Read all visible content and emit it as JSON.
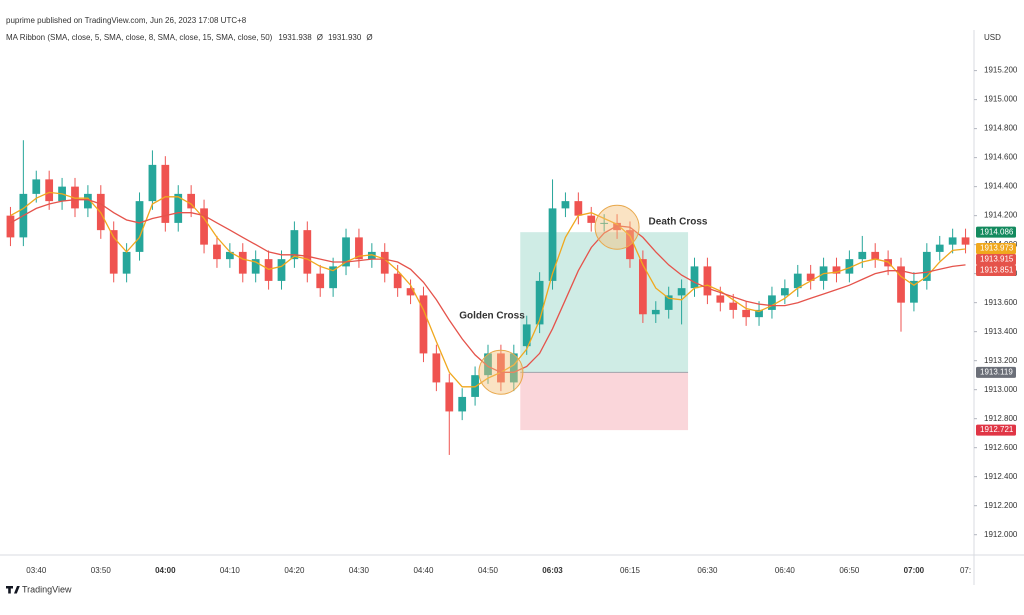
{
  "header": {
    "text": "puprime published on TradingView.com, Jun 26, 2023 17:08 UTC+8"
  },
  "footer": {
    "text": "TradingView"
  },
  "chart_data": {
    "type": "candlestick",
    "unit": "USD",
    "indicator": {
      "label": "MA Ribbon (SMA, close, 5, SMA, close, 8, SMA, close, 15, SMA, close, 50)",
      "values": [
        {
          "text": "1931.938",
          "color": "#f0a81e"
        },
        {
          "text": "Ø",
          "color": "#555555"
        },
        {
          "text": "1931.930",
          "color": "#e5534b"
        },
        {
          "text": "Ø",
          "color": "#555555"
        }
      ]
    },
    "categories": [
      null,
      null,
      "03:40",
      null,
      null,
      null,
      null,
      "03:50",
      null,
      null,
      null,
      null,
      "04:00",
      null,
      null,
      null,
      null,
      "04:10",
      null,
      null,
      null,
      null,
      "04:20",
      null,
      null,
      null,
      null,
      "04:30",
      null,
      null,
      null,
      null,
      "04:40",
      null,
      null,
      null,
      null,
      "04:50",
      null,
      null,
      null,
      null,
      "06:03",
      null,
      null,
      null,
      null,
      null,
      "06:15",
      null,
      null,
      null,
      null,
      null,
      "06:30",
      null,
      null,
      null,
      null,
      null,
      "06:40",
      null,
      null,
      null,
      null,
      "06:50",
      null,
      null,
      null,
      null,
      "07:00",
      null,
      null,
      null,
      "07:"
    ],
    "up_color": "#26a69a",
    "down_color": "#ef5350",
    "candles": [
      [
        1914.2,
        1914.26,
        1913.99,
        1914.05
      ],
      [
        1914.05,
        1914.72,
        1913.99,
        1914.35
      ],
      [
        1914.35,
        1914.51,
        1914.29,
        1914.45
      ],
      [
        1914.45,
        1914.51,
        1914.24,
        1914.3
      ],
      [
        1914.3,
        1914.46,
        1914.24,
        1914.4
      ],
      [
        1914.4,
        1914.46,
        1914.19,
        1914.25
      ],
      [
        1914.25,
        1914.41,
        1914.19,
        1914.35
      ],
      [
        1914.35,
        1914.41,
        1914.04,
        1914.1
      ],
      [
        1914.1,
        1914.16,
        1913.74,
        1913.8
      ],
      [
        1913.8,
        1914.01,
        1913.74,
        1913.95
      ],
      [
        1913.95,
        1914.36,
        1913.89,
        1914.3
      ],
      [
        1914.3,
        1914.65,
        1914.24,
        1914.55
      ],
      [
        1914.55,
        1914.61,
        1914.09,
        1914.15
      ],
      [
        1914.15,
        1914.41,
        1914.09,
        1914.35
      ],
      [
        1914.35,
        1914.41,
        1914.19,
        1914.25
      ],
      [
        1914.25,
        1914.31,
        1913.94,
        1914.0
      ],
      [
        1914.0,
        1914.06,
        1913.84,
        1913.9
      ],
      [
        1913.9,
        1914.01,
        1913.84,
        1913.95
      ],
      [
        1913.95,
        1914.01,
        1913.74,
        1913.8
      ],
      [
        1913.8,
        1913.96,
        1913.74,
        1913.9
      ],
      [
        1913.9,
        1913.96,
        1913.69,
        1913.75
      ],
      [
        1913.75,
        1913.96,
        1913.69,
        1913.9
      ],
      [
        1913.9,
        1914.16,
        1913.84,
        1914.1
      ],
      [
        1914.1,
        1914.16,
        1913.74,
        1913.8
      ],
      [
        1913.8,
        1913.86,
        1913.64,
        1913.7
      ],
      [
        1913.7,
        1913.91,
        1913.64,
        1913.85
      ],
      [
        1913.85,
        1914.11,
        1913.79,
        1914.05
      ],
      [
        1914.05,
        1914.11,
        1913.84,
        1913.9
      ],
      [
        1913.9,
        1914.01,
        1913.84,
        1913.95
      ],
      [
        1913.95,
        1914.01,
        1913.74,
        1913.8
      ],
      [
        1913.8,
        1913.86,
        1913.64,
        1913.7
      ],
      [
        1913.7,
        1913.76,
        1913.59,
        1913.65
      ],
      [
        1913.65,
        1913.71,
        1913.19,
        1913.25
      ],
      [
        1913.25,
        1913.31,
        1912.99,
        1913.05
      ],
      [
        1913.05,
        1913.11,
        1912.55,
        1912.85
      ],
      [
        1912.85,
        1913.01,
        1912.79,
        1912.95
      ],
      [
        1912.95,
        1913.16,
        1912.89,
        1913.1
      ],
      [
        1913.1,
        1913.31,
        1913.04,
        1913.25
      ],
      [
        1913.25,
        1913.31,
        1912.99,
        1913.05
      ],
      [
        1913.05,
        1913.31,
        1912.99,
        1913.25
      ],
      [
        1913.3,
        1913.51,
        1913.24,
        1913.45
      ],
      [
        1913.45,
        1913.81,
        1913.39,
        1913.75
      ],
      [
        1913.75,
        1914.45,
        1913.69,
        1914.25
      ],
      [
        1914.25,
        1914.36,
        1914.19,
        1914.3
      ],
      [
        1914.3,
        1914.36,
        1914.14,
        1914.2
      ],
      [
        1914.2,
        1914.26,
        1914.09,
        1914.15
      ],
      [
        1914.15,
        1914.21,
        1914.09,
        1914.15
      ],
      [
        1914.15,
        1914.21,
        1914.04,
        1914.1
      ],
      [
        1914.1,
        1914.16,
        1913.84,
        1913.9
      ],
      [
        1913.9,
        1913.96,
        1913.46,
        1913.52
      ],
      [
        1913.52,
        1913.61,
        1913.46,
        1913.55
      ],
      [
        1913.55,
        1913.71,
        1913.49,
        1913.65
      ],
      [
        1913.65,
        1913.76,
        1913.45,
        1913.7
      ],
      [
        1913.7,
        1913.91,
        1913.64,
        1913.85
      ],
      [
        1913.85,
        1913.91,
        1913.59,
        1913.65
      ],
      [
        1913.65,
        1913.71,
        1913.54,
        1913.6
      ],
      [
        1913.6,
        1913.66,
        1913.49,
        1913.55
      ],
      [
        1913.55,
        1913.61,
        1913.44,
        1913.5
      ],
      [
        1913.5,
        1913.61,
        1913.44,
        1913.55
      ],
      [
        1913.55,
        1913.71,
        1913.49,
        1913.65
      ],
      [
        1913.65,
        1913.76,
        1913.59,
        1913.7
      ],
      [
        1913.7,
        1913.86,
        1913.64,
        1913.8
      ],
      [
        1913.8,
        1913.86,
        1913.69,
        1913.75
      ],
      [
        1913.75,
        1913.91,
        1913.69,
        1913.85
      ],
      [
        1913.85,
        1913.91,
        1913.74,
        1913.8
      ],
      [
        1913.8,
        1913.96,
        1913.74,
        1913.9
      ],
      [
        1913.9,
        1914.06,
        1913.84,
        1913.95
      ],
      [
        1913.95,
        1914.01,
        1913.84,
        1913.9
      ],
      [
        1913.9,
        1913.96,
        1913.79,
        1913.85
      ],
      [
        1913.85,
        1913.91,
        1913.4,
        1913.6
      ],
      [
        1913.6,
        1913.81,
        1913.54,
        1913.75
      ],
      [
        1913.75,
        1914.01,
        1913.69,
        1913.95
      ],
      [
        1913.95,
        1914.06,
        1913.89,
        1914.0
      ],
      [
        1914.0,
        1914.11,
        1913.94,
        1914.05
      ],
      [
        1914.05,
        1914.11,
        1913.94,
        1914.0
      ]
    ],
    "ma_lines": [
      {
        "color": "#f0a81e",
        "values": [
          1914.2,
          1914.25,
          1914.32,
          1914.36,
          1914.35,
          1914.32,
          1914.32,
          1914.22,
          1914.05,
          1913.95,
          1914.05,
          1914.28,
          1914.33,
          1914.33,
          1914.28,
          1914.18,
          1914.05,
          1913.95,
          1913.9,
          1913.88,
          1913.83,
          1913.85,
          1913.92,
          1913.9,
          1913.85,
          1913.82,
          1913.88,
          1913.92,
          1913.93,
          1913.9,
          1913.82,
          1913.72,
          1913.55,
          1913.33,
          1913.12,
          1913.02,
          1913.02,
          1913.08,
          1913.12,
          1913.17,
          1913.28,
          1913.48,
          1913.8,
          1914.05,
          1914.2,
          1914.22,
          1914.18,
          1914.14,
          1914.06,
          1913.86,
          1913.7,
          1913.63,
          1913.62,
          1913.7,
          1913.72,
          1913.68,
          1913.62,
          1913.56,
          1913.54,
          1913.58,
          1913.63,
          1913.7,
          1913.75,
          1913.8,
          1913.81,
          1913.84,
          1913.88,
          1913.9,
          1913.88,
          1913.78,
          1913.72,
          1913.78,
          1913.88,
          1913.96,
          1913.97
        ]
      },
      {
        "color": "#e5534b",
        "values": [
          1914.15,
          1914.2,
          1914.25,
          1914.28,
          1914.3,
          1914.31,
          1914.31,
          1914.28,
          1914.22,
          1914.17,
          1914.15,
          1914.18,
          1914.2,
          1914.22,
          1914.22,
          1914.2,
          1914.15,
          1914.1,
          1914.05,
          1914.0,
          1913.95,
          1913.93,
          1913.93,
          1913.92,
          1913.9,
          1913.88,
          1913.88,
          1913.89,
          1913.9,
          1913.9,
          1913.88,
          1913.83,
          1913.74,
          1913.62,
          1913.48,
          1913.35,
          1913.24,
          1913.16,
          1913.12,
          1913.12,
          1913.16,
          1913.25,
          1913.42,
          1913.62,
          1913.82,
          1913.98,
          1914.08,
          1914.13,
          1914.12,
          1914.05,
          1913.95,
          1913.86,
          1913.79,
          1913.74,
          1913.7,
          1913.67,
          1913.64,
          1913.61,
          1913.59,
          1913.58,
          1913.58,
          1913.6,
          1913.63,
          1913.66,
          1913.69,
          1913.72,
          1913.76,
          1913.8,
          1913.82,
          1913.82,
          1913.8,
          1913.81,
          1913.83,
          1913.85,
          1913.86
        ]
      }
    ],
    "position": {
      "target": 1914.086,
      "entry": 1913.119,
      "stop": 1912.721,
      "profit_color": "#bfe6dc",
      "loss_color": "#f9cfd3"
    },
    "price_labels": [
      {
        "value": 1914.086,
        "color": "#138a5e"
      },
      {
        "value": 1913.973,
        "color": "#f0a81e"
      },
      {
        "value": 1913.915,
        "color": "#e5534b"
      },
      {
        "value": 1913.851,
        "color": "#e5534b"
      },
      {
        "value": 1913.119,
        "color": "#6b6f78"
      },
      {
        "value": 1912.721,
        "color": "#e03545"
      }
    ],
    "annotations": [
      {
        "text": "Golden Cross",
        "color": "#3a8f3a"
      },
      {
        "text": "Death Cross",
        "color": "#3a8f3a"
      }
    ],
    "ylim": [
      1911.86,
      1915.48
    ],
    "yticks": [
      {
        "value": 1912,
        "label": "1912.000"
      },
      {
        "value": 1912.2,
        "label": "1912.200"
      },
      {
        "value": 1912.4,
        "label": "1912.400"
      },
      {
        "value": 1912.6,
        "label": "1912.600"
      },
      {
        "value": 1912.8,
        "label": "1912.800"
      },
      {
        "value": 1913,
        "label": "1913.000"
      },
      {
        "value": 1913.2,
        "label": "1913.200"
      },
      {
        "value": 1913.4,
        "label": "1913.400"
      },
      {
        "value": 1913.6,
        "label": "1913.600"
      },
      {
        "value": 1913.8,
        "label": "1913.800"
      },
      {
        "value": 1914,
        "label": "1914.000"
      },
      {
        "value": 1914.2,
        "label": "1914.200"
      },
      {
        "value": 1914.4,
        "label": "1914.400"
      },
      {
        "value": 1914.6,
        "label": "1914.600"
      },
      {
        "value": 1914.8,
        "label": "1914.800"
      },
      {
        "value": 1915,
        "label": "1915.000"
      },
      {
        "value": 1915.2,
        "label": "1915.200"
      }
    ],
    "grid": false
  }
}
